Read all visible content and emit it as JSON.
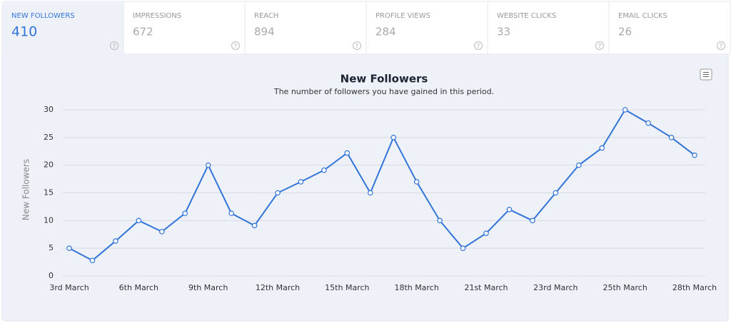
{
  "tabs": [
    {
      "label": "NEW FOLLOWERS",
      "value": "410"
    },
    {
      "label": "IMPRESSIONS",
      "value": "672"
    },
    {
      "label": "REACH",
      "value": "894"
    },
    {
      "label": "PROFILE VIEWS",
      "value": "284"
    },
    {
      "label": "WEBSITE CLICKS",
      "value": "33"
    },
    {
      "label": "EMAIL CLICKS",
      "value": "26"
    }
  ],
  "help_icon": "?",
  "chart_data": {
    "type": "line",
    "title": "New Followers",
    "subtitle": "The number of followers you have gained in this period.",
    "y_label": "New Followers",
    "categories": [
      "3rd March",
      null,
      null,
      "6th March",
      null,
      null,
      "9th March",
      null,
      null,
      "12th March",
      null,
      null,
      "15th March",
      null,
      null,
      "18th March",
      null,
      null,
      "21st March",
      null,
      null,
      "23rd March",
      null,
      null,
      "25th March",
      null,
      null,
      "28th March"
    ],
    "series": [
      {
        "name": "New Followers",
        "color": "#3275d8",
        "values": [
          5,
          2.8,
          6.3,
          10,
          8,
          11.3,
          20,
          11.3,
          9.1,
          15,
          17,
          19.1,
          22.2,
          15,
          25,
          17,
          10,
          5,
          7.7,
          12,
          10,
          15,
          20,
          23.1,
          30,
          27.6,
          25,
          21.8
        ]
      }
    ],
    "ylim": [
      0,
      30
    ],
    "yticks": [
      0,
      5,
      10,
      15,
      20,
      25,
      30
    ],
    "grid": true
  }
}
